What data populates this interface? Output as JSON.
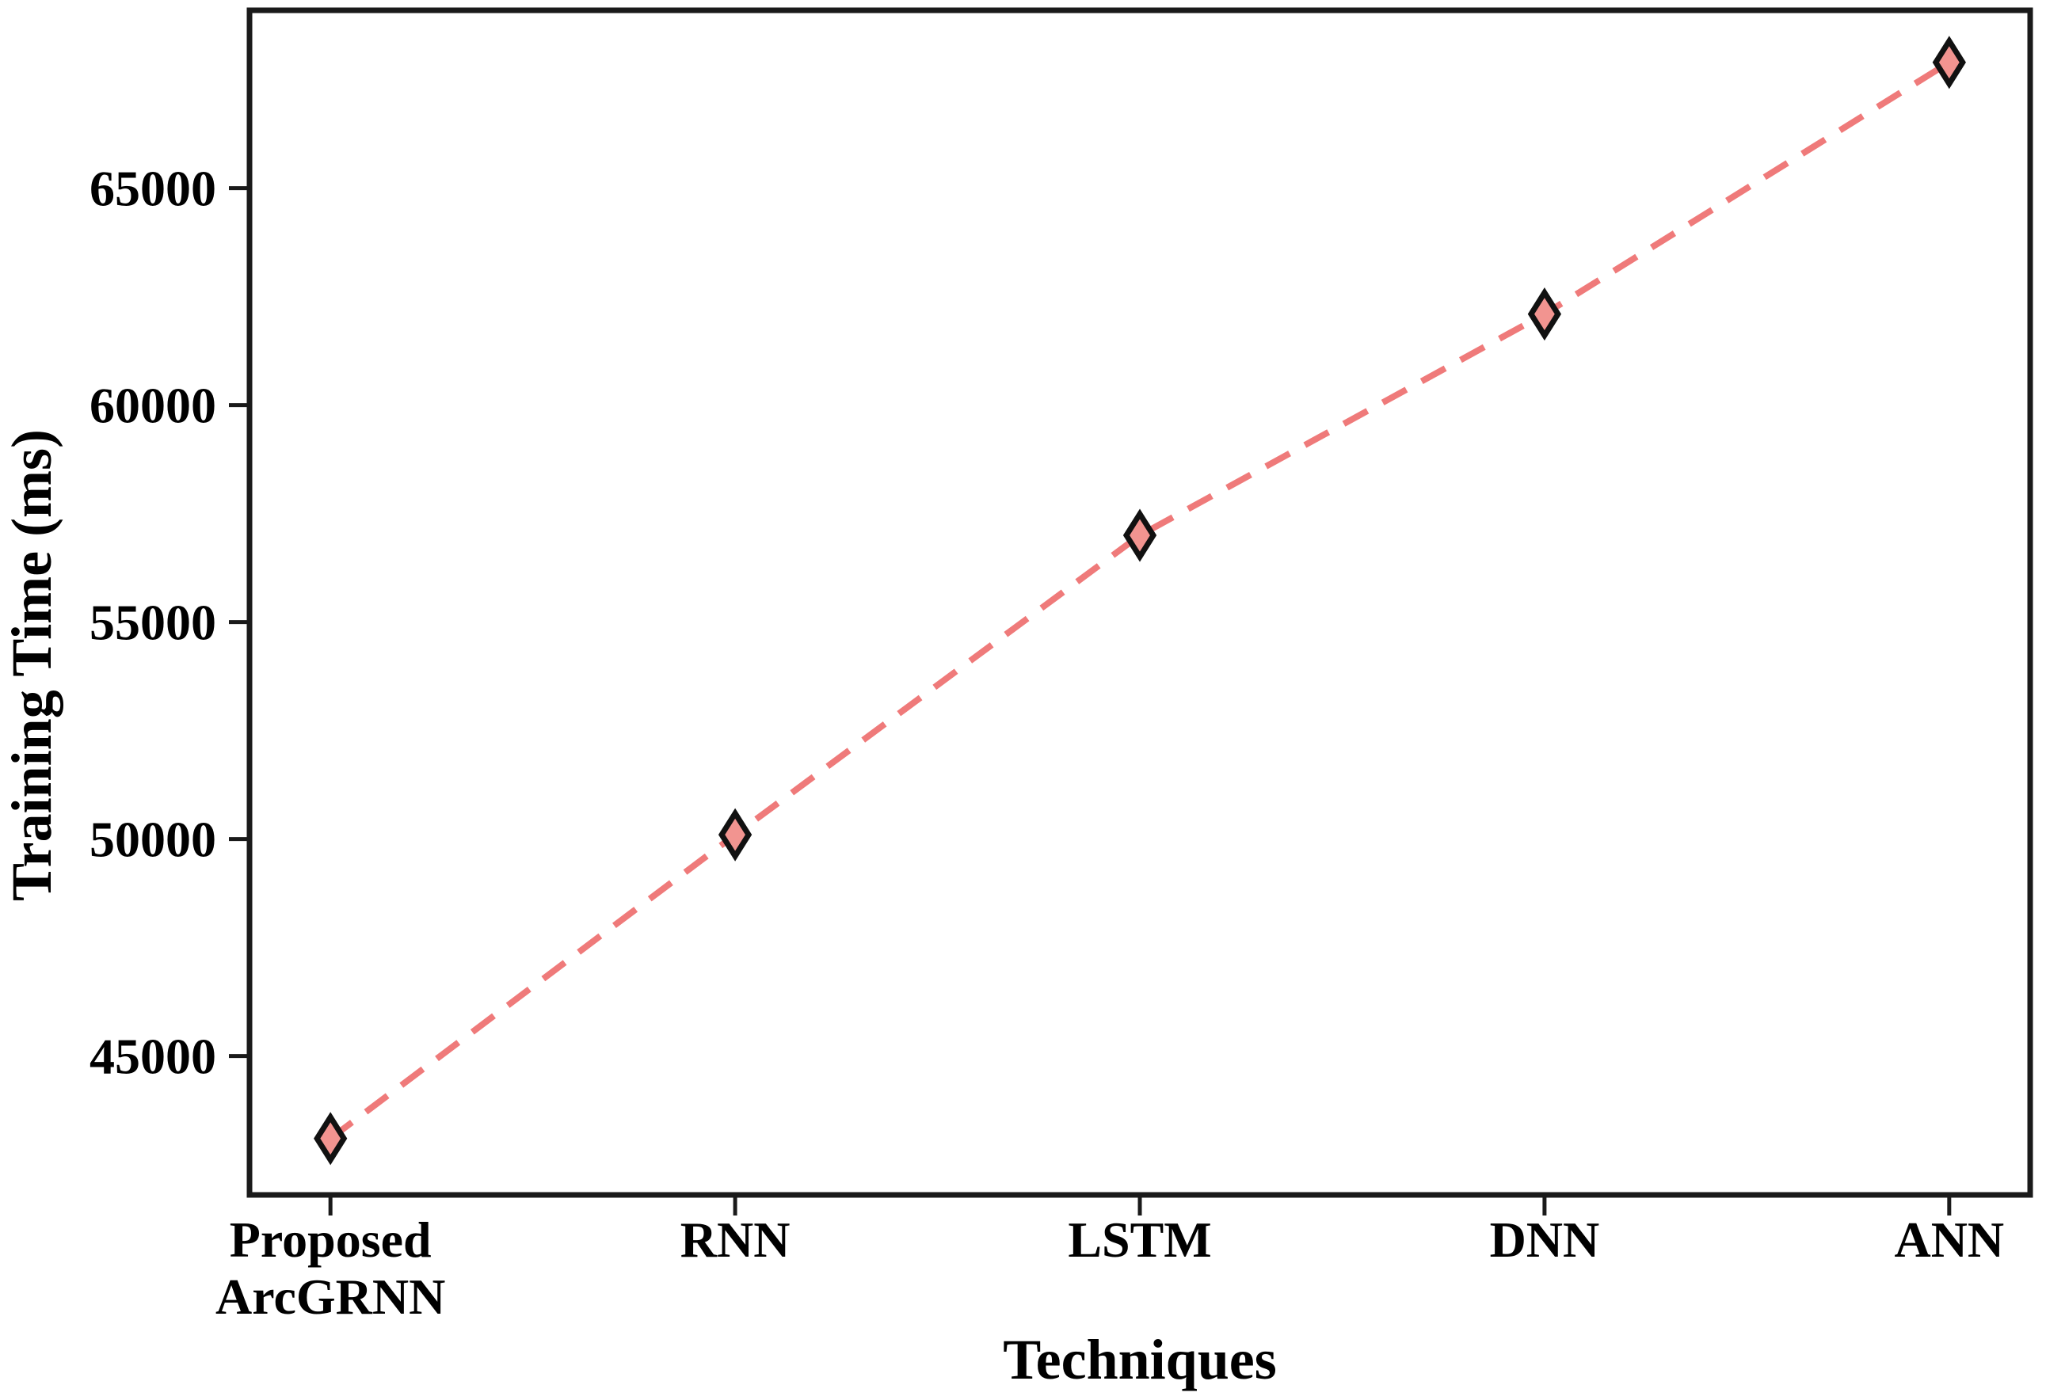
{
  "figure": {
    "background": "#ffffff"
  },
  "chart_data": {
    "type": "line",
    "title": "",
    "xlabel": "Techniques",
    "ylabel": "Training Time (ms)",
    "categories": [
      "Proposed\nArcGRNN",
      "RNN",
      "LSTM",
      "DNN",
      "ANN"
    ],
    "series": [
      {
        "name": "training-time",
        "values": [
          43100,
          50100,
          57000,
          62100,
          67900
        ],
        "line_color": "#ef7a7a",
        "line_style": "dashed",
        "marker": "diamond",
        "marker_fill": "#f29490",
        "marker_edge": "#111111"
      }
    ],
    "yticks": [
      45000,
      50000,
      55000,
      60000,
      65000
    ],
    "ytick_labels": [
      "45000",
      "50000",
      "55000",
      "60000",
      "65000"
    ],
    "ylim": [
      41800,
      69100
    ],
    "grid": false,
    "legend_position": "none",
    "axis_color": "#1a1a1a",
    "text_color": "#000000"
  }
}
